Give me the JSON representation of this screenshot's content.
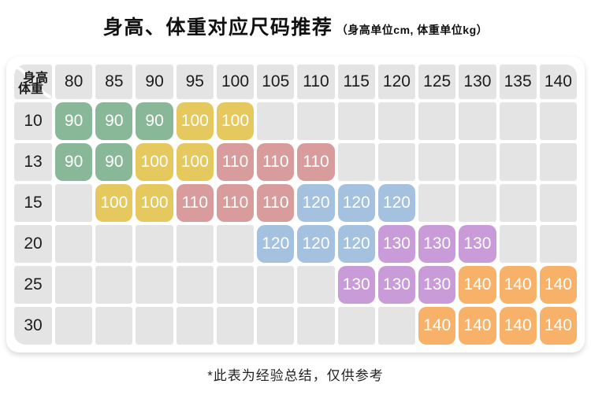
{
  "title": {
    "main": "身高、体重对应尺码推荐",
    "sub": "（身高单位cm, 体重单位kg）"
  },
  "corner": {
    "top": "身高",
    "bottom": "体重"
  },
  "footnote": "*此表为经验总结，仅供参考",
  "colors": {
    "90": "#89b898",
    "100": "#e6c95e",
    "110": "#d99c9c",
    "120": "#a4c1df",
    "130": "#c99bd8",
    "140": "#f7b168",
    "empty": "#e4e4e4"
  },
  "chart_data": {
    "type": "table",
    "title": "身高、体重对应尺码推荐",
    "x_header": "身高",
    "y_header": "体重",
    "heights": [
      80,
      85,
      90,
      95,
      100,
      105,
      110,
      115,
      120,
      125,
      130,
      135,
      140
    ],
    "weights": [
      10,
      13,
      15,
      20,
      25,
      30
    ],
    "rows": [
      [
        "90",
        "90",
        "90",
        "100",
        "100",
        "",
        "",
        "",
        "",
        "",
        "",
        "",
        ""
      ],
      [
        "90",
        "90",
        "100",
        "100",
        "110",
        "110",
        "110",
        "",
        "",
        "",
        "",
        "",
        ""
      ],
      [
        "",
        "100",
        "100",
        "110",
        "110",
        "110",
        "120",
        "120",
        "120",
        "",
        "",
        "",
        ""
      ],
      [
        "",
        "",
        "",
        "",
        "",
        "120",
        "120",
        "120",
        "130",
        "130",
        "130",
        "",
        ""
      ],
      [
        "",
        "",
        "",
        "",
        "",
        "",
        "",
        "130",
        "130",
        "130",
        "140",
        "140",
        "140"
      ],
      [
        "",
        "",
        "",
        "",
        "",
        "",
        "",
        "",
        "",
        "140",
        "140",
        "140",
        "140"
      ]
    ]
  }
}
